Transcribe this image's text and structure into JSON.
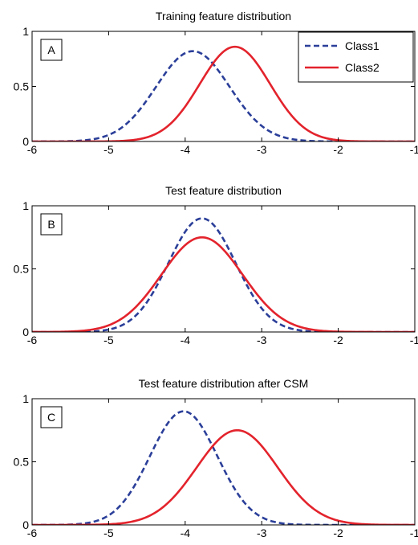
{
  "chart_data": [
    {
      "type": "line",
      "panel_label": "A",
      "title": "Training feature distribution",
      "xlim": [
        -6,
        -1
      ],
      "ylim": [
        0,
        1
      ],
      "xticks": [
        -6,
        -5,
        -4,
        -3,
        -2,
        -1
      ],
      "yticks": [
        0,
        0.5,
        1
      ],
      "xtick_labels": [
        "-6",
        "-5",
        "-4",
        "-3",
        "-2",
        "-1"
      ],
      "ytick_labels": [
        "0",
        "0.5",
        "1"
      ],
      "grid": false,
      "legend": {
        "position": "top-right",
        "entries": [
          "Class1",
          "Class2"
        ]
      },
      "series": [
        {
          "name": "Class1",
          "style": "dashed",
          "color": "#2b3f99",
          "curve": "gaussian",
          "mean": -3.9,
          "std": 0.48,
          "peak": 0.82
        },
        {
          "name": "Class2",
          "style": "solid",
          "color": "#e3232c",
          "curve": "gaussian",
          "mean": -3.35,
          "std": 0.46,
          "peak": 0.86
        }
      ]
    },
    {
      "type": "line",
      "panel_label": "B",
      "title": "Test feature distribution",
      "xlim": [
        -6,
        -1
      ],
      "ylim": [
        0,
        1
      ],
      "xticks": [
        -6,
        -5,
        -4,
        -3,
        -2,
        -1
      ],
      "yticks": [
        0,
        0.5,
        1
      ],
      "xtick_labels": [
        "-6",
        "-5",
        "-4",
        "-3",
        "-2",
        "-1"
      ],
      "ytick_labels": [
        "0",
        "0.5",
        "1"
      ],
      "grid": false,
      "series": [
        {
          "name": "Class1",
          "style": "dashed",
          "color": "#2b3f99",
          "curve": "gaussian",
          "mean": -3.78,
          "std": 0.44,
          "peak": 0.9
        },
        {
          "name": "Class2",
          "style": "solid",
          "color": "#e3232c",
          "curve": "gaussian",
          "mean": -3.78,
          "std": 0.53,
          "peak": 0.75
        }
      ]
    },
    {
      "type": "line",
      "panel_label": "C",
      "title": "Test feature distribution after CSM",
      "xlim": [
        -6,
        -1
      ],
      "ylim": [
        0,
        1
      ],
      "xticks": [
        -6,
        -5,
        -4,
        -3,
        -2,
        -1
      ],
      "yticks": [
        0,
        0.5,
        1
      ],
      "xtick_labels": [
        "-6",
        "-5",
        "-4",
        "-3",
        "-2",
        "-1"
      ],
      "ytick_labels": [
        "0",
        "0.5",
        "1"
      ],
      "grid": false,
      "series": [
        {
          "name": "Class1",
          "style": "dashed",
          "color": "#2b3f99",
          "curve": "gaussian",
          "mean": -4.02,
          "std": 0.44,
          "peak": 0.9
        },
        {
          "name": "Class2",
          "style": "solid",
          "color": "#e3232c",
          "curve": "gaussian",
          "mean": -3.32,
          "std": 0.53,
          "peak": 0.75
        }
      ]
    }
  ]
}
